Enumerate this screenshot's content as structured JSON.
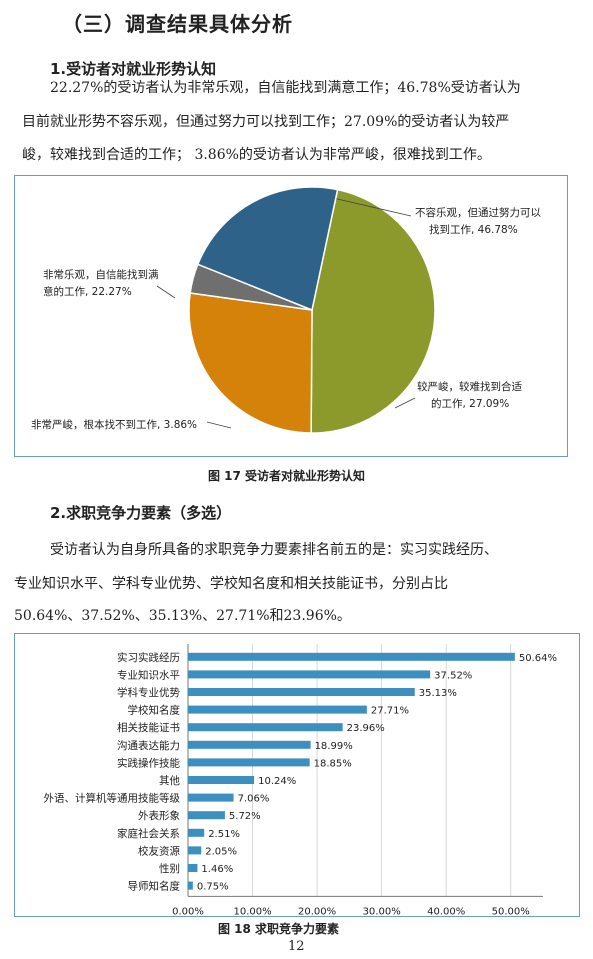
{
  "section_title": "（三）调查结果具体分析",
  "s1": {
    "heading": "1.受访者对就业形势认知",
    "para_lines": [
      "22.27%的受访者认为非常乐观，自信能找到满意工作；46.78%受访者认为",
      "目前就业形势不容乐观，但通过努力可以找到工作；27.09%的受访者认为较严",
      "峻，较难找到合适的工作； 3.86%的受访者认为非常严峻，很难找到工作。"
    ],
    "figure_caption": "图 17  受访者对就业形势认知"
  },
  "s2": {
    "heading": "2.求职竞争力要素（多选）",
    "para_lines": [
      "受访者认为自身所具备的求职竞争力要素排名前五的是：实习实践经历、",
      "专业知识水平、学科专业优势、学校知名度和相关技能证书，分别占比",
      "50.64%、37.52%、35.13%、27.71%和23.96%。"
    ],
    "figure_caption": "图 18  求职竞争力要素"
  },
  "page_number": "12",
  "chart_data": [
    {
      "type": "pie",
      "slices": [
        {
          "label_lines": [
            "不容乐观，但通过努力可以",
            "找到工作, 46.78%"
          ],
          "value": 46.78,
          "color": "#8c9a2c"
        },
        {
          "label_lines": [
            "较严峻，较难找到合适",
            "的工作, 27.09%"
          ],
          "value": 27.09,
          "color": "#d4820a"
        },
        {
          "label_lines": [
            "非常严峻，根本找不到工作, 3.86%"
          ],
          "value": 3.86,
          "color": "#6f6f6f"
        },
        {
          "label_lines": [
            "非常乐观，自信能找到满",
            "意的工作, 22.27%"
          ],
          "value": 22.27,
          "color": "#2f6288"
        }
      ]
    },
    {
      "type": "bar",
      "orientation": "horizontal",
      "categories": [
        "实习实践经历",
        "专业知识水平",
        "学科专业优势",
        "学校知名度",
        "相关技能证书",
        "沟通表达能力",
        "实践操作技能",
        "其他",
        "外语、计算机等通用技能等级",
        "外表形象",
        "家庭社会关系",
        "校友资源",
        "性别",
        "导师知名度"
      ],
      "values": [
        50.64,
        37.52,
        35.13,
        27.71,
        23.96,
        18.99,
        18.85,
        10.24,
        7.06,
        5.72,
        2.51,
        2.05,
        1.46,
        0.75
      ],
      "value_labels": [
        "50.64%",
        "37.52%",
        "35.13%",
        "27.71%",
        "23.96%",
        "18.99%",
        "18.85%",
        "10.24%",
        "7.06%",
        "5.72%",
        "2.51%",
        "2.05%",
        "1.46%",
        "0.75%"
      ],
      "x_ticks": [
        "0.00%",
        "10.00%",
        "20.00%",
        "30.00%",
        "40.00%",
        "50.00%"
      ],
      "xlim": [
        0,
        55
      ],
      "bar_color": "#3d8fbf",
      "grid": true
    }
  ]
}
